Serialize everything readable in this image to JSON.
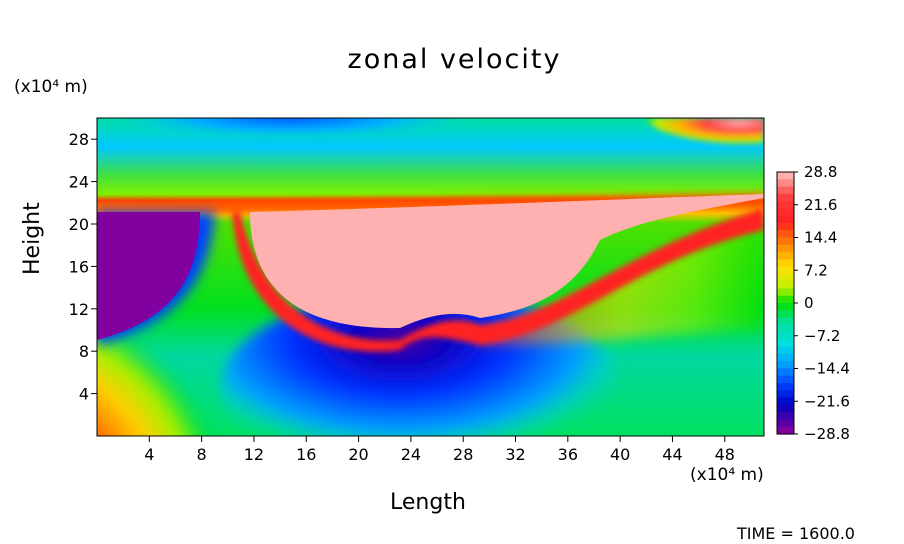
{
  "chart_data": {
    "type": "heatmap",
    "title": "zonal velocity",
    "xlabel": "Length",
    "ylabel": "Height",
    "x_unit_label": "(x10⁴ m)",
    "y_unit_label": "(x10⁴ m)",
    "time_label": "TIME  =  1600.0",
    "xlim": [
      0,
      51
    ],
    "ylim": [
      0,
      30
    ],
    "x_ticks": [
      4,
      8,
      12,
      16,
      20,
      24,
      28,
      32,
      36,
      40,
      44,
      48
    ],
    "y_ticks": [
      4,
      8,
      12,
      16,
      20,
      24,
      28
    ],
    "colorbar": {
      "min": -28.8,
      "max": 28.8,
      "ticks": [
        28.8,
        21.6,
        14.4,
        7.2,
        0,
        -7.2,
        -14.4,
        -21.6,
        -28.8
      ],
      "tick_labels": [
        "28.8",
        "21.6",
        "14.4",
        "7.2",
        "0",
        "−7.2",
        "−14.4",
        "−21.6",
        "−28.8"
      ]
    },
    "regions": [
      {
        "name": "lower-left jet",
        "approx_value": 24
      },
      {
        "name": "upper-left core",
        "approx_value": -28.8
      },
      {
        "name": "upper-mid core",
        "approx_value": 28.8
      },
      {
        "name": "lower-mid core",
        "approx_value": -26
      },
      {
        "name": "top band",
        "approx_value": -14
      },
      {
        "name": "top-right corner",
        "approx_value": 28.8
      }
    ],
    "colors": {
      "max": "#ffb0b0",
      "high": "#ff2020",
      "mid_high": "#ffa000",
      "mid": "#ffff00",
      "zero": "#00e000",
      "mid_low": "#00e0e0",
      "low": "#0000ff",
      "min": "#8000a0"
    }
  }
}
